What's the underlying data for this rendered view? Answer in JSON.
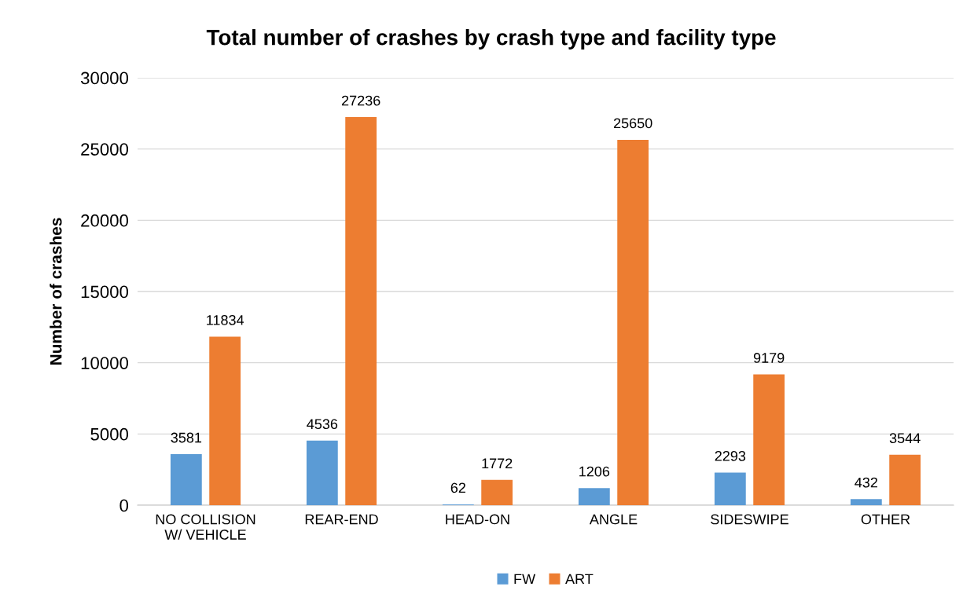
{
  "chart_data": {
    "type": "bar",
    "title": "Total number of crashes by crash type and facility type",
    "ylabel": "Number of crashes",
    "categories": [
      "NO COLLISION\nW/ VEHICLE",
      "REAR-END",
      "HEAD-ON",
      "ANGLE",
      "SIDESWIPE",
      "OTHER"
    ],
    "series": [
      {
        "name": "FW",
        "color": "#5b9bd5",
        "values": [
          3581,
          4536,
          62,
          1206,
          2293,
          432
        ]
      },
      {
        "name": "ART",
        "color": "#ed7d31",
        "values": [
          11834,
          27236,
          1772,
          25650,
          9179,
          3544
        ]
      }
    ],
    "ylim": [
      0,
      30000
    ],
    "yticks": [
      0,
      5000,
      10000,
      15000,
      20000,
      25000,
      30000
    ],
    "grid": "y",
    "legend": "bottom",
    "data_labels": true
  }
}
